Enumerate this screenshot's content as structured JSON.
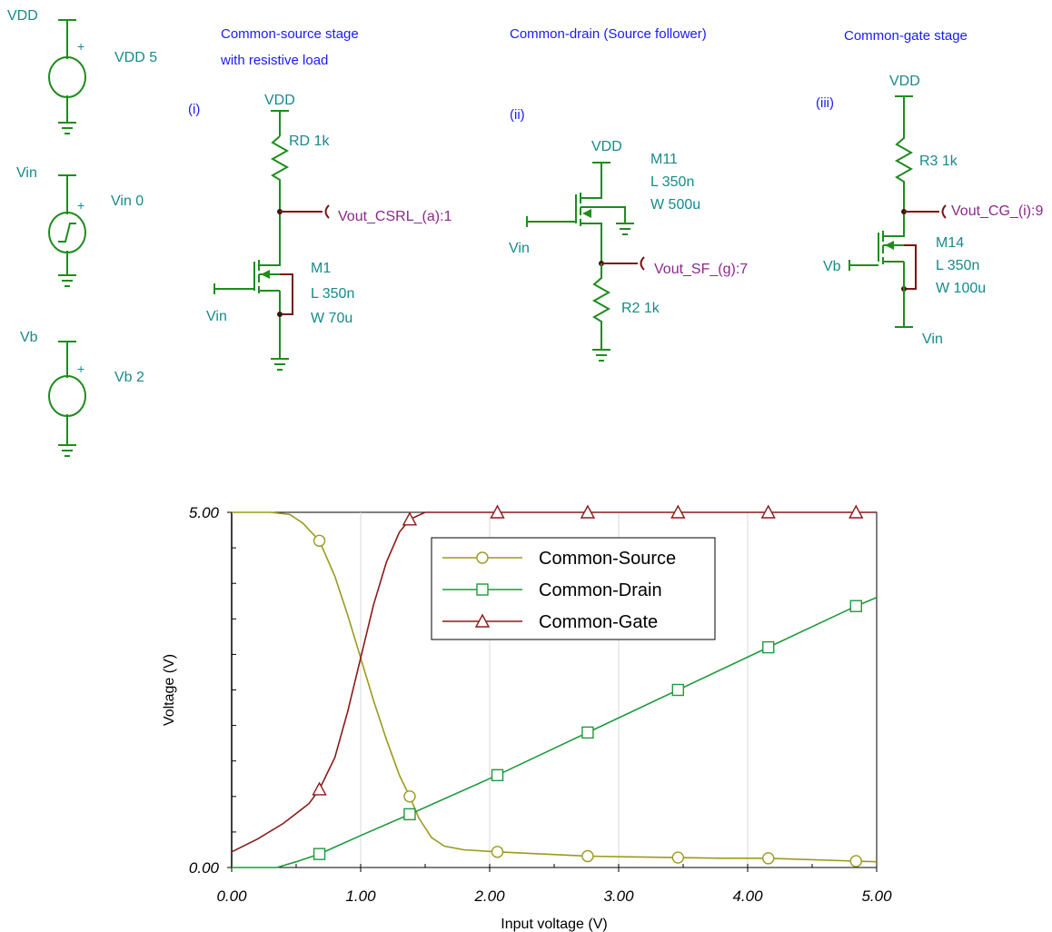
{
  "colors": {
    "heading_text": "#1a1aff",
    "component_text": "#168a8a",
    "node_text": "#8a2a8a",
    "wire": "#1e8c1e",
    "output_wire": "#7a1414",
    "common_source": "#9a9a1e",
    "common_drain": "#1e9a3c",
    "common_gate": "#8a1a1a"
  },
  "sources": {
    "vdd": {
      "node": "VDD",
      "label": "VDD 5",
      "polarity": "+"
    },
    "vin": {
      "node": "Vin",
      "label": "Vin 0",
      "polarity": "+"
    },
    "vb": {
      "node": "Vb",
      "label": "Vb 2",
      "polarity": "+"
    }
  },
  "circuit_cs": {
    "heading_line1": "Common-source stage",
    "heading_line2": "with resistive load",
    "tag": "(i)",
    "supply": "VDD",
    "resistor": "RD 1k",
    "output": "Vout_CSRL_(a):1",
    "input": "Vin",
    "mosfet_name": "M1",
    "mosfet_l": "L 350n",
    "mosfet_w": "W 70u"
  },
  "circuit_cd": {
    "heading": "Common-drain (Source follower)",
    "tag": "(ii)",
    "supply": "VDD",
    "input": "Vin",
    "mosfet_name": "M11",
    "mosfet_l": "L 350n",
    "mosfet_w": "W 500u",
    "output": "Vout_SF_(g):7",
    "resistor": "R2 1k"
  },
  "circuit_cg": {
    "heading": "Common-gate stage",
    "tag": "(iii)",
    "supply": "VDD",
    "resistor": "R3 1k",
    "output": "Vout_CG_(i):9",
    "bias": "Vb",
    "mosfet_name": "M14",
    "mosfet_l": "L 350n",
    "mosfet_w": "W 100u",
    "input": "Vin"
  },
  "chart_data": {
    "type": "line",
    "xlabel": "Input voltage (V)",
    "ylabel": "Voltage (V)",
    "xlim": [
      0,
      5
    ],
    "ylim": [
      0,
      5
    ],
    "x_ticks": [
      "0.00",
      "1.00",
      "2.00",
      "3.00",
      "4.00",
      "5.00"
    ],
    "y_ticks": [
      "0.00",
      "5.00"
    ],
    "grid": "vertical",
    "legend_position": "top-center",
    "series": [
      {
        "name": "Common-Source",
        "marker": "circle",
        "color": "#9a9a1e",
        "points": [
          [
            0,
            5
          ],
          [
            0.3,
            5
          ],
          [
            0.45,
            4.97
          ],
          [
            0.55,
            4.85
          ],
          [
            0.68,
            4.6
          ],
          [
            0.8,
            4.1
          ],
          [
            0.9,
            3.55
          ],
          [
            1.0,
            2.95
          ],
          [
            1.1,
            2.35
          ],
          [
            1.2,
            1.8
          ],
          [
            1.3,
            1.3
          ],
          [
            1.38,
            1.0
          ],
          [
            1.45,
            0.7
          ],
          [
            1.55,
            0.42
          ],
          [
            1.65,
            0.3
          ],
          [
            1.8,
            0.25
          ],
          [
            2.06,
            0.22
          ],
          [
            2.4,
            0.19
          ],
          [
            2.76,
            0.16
          ],
          [
            3.1,
            0.15
          ],
          [
            3.46,
            0.14
          ],
          [
            3.8,
            0.13
          ],
          [
            4.16,
            0.13
          ],
          [
            4.5,
            0.11
          ],
          [
            4.84,
            0.09
          ],
          [
            5,
            0.08
          ]
        ],
        "marker_x": [
          0.68,
          1.38,
          2.06,
          2.76,
          3.46,
          4.16,
          4.84
        ]
      },
      {
        "name": "Common-Drain",
        "marker": "square",
        "color": "#1e9a3c",
        "points": [
          [
            0,
            0
          ],
          [
            0.35,
            0
          ],
          [
            0.5,
            0.08
          ],
          [
            0.68,
            0.19
          ],
          [
            1.0,
            0.45
          ],
          [
            1.38,
            0.75
          ],
          [
            2.06,
            1.3
          ],
          [
            2.76,
            1.9
          ],
          [
            3.46,
            2.5
          ],
          [
            4.16,
            3.1
          ],
          [
            4.84,
            3.68
          ],
          [
            5,
            3.8
          ]
        ],
        "marker_x": [
          0.68,
          1.38,
          2.06,
          2.76,
          3.46,
          4.16,
          4.84
        ]
      },
      {
        "name": "Common-Gate",
        "marker": "triangle",
        "color": "#8a1a1a",
        "points": [
          [
            0,
            0.22
          ],
          [
            0.2,
            0.4
          ],
          [
            0.4,
            0.62
          ],
          [
            0.6,
            0.9
          ],
          [
            0.68,
            1.1
          ],
          [
            0.8,
            1.55
          ],
          [
            0.9,
            2.2
          ],
          [
            1.0,
            2.95
          ],
          [
            1.1,
            3.7
          ],
          [
            1.2,
            4.3
          ],
          [
            1.3,
            4.72
          ],
          [
            1.38,
            4.9
          ],
          [
            1.5,
            5.0
          ],
          [
            2.06,
            5
          ],
          [
            2.76,
            5
          ],
          [
            3.46,
            5
          ],
          [
            4.16,
            5
          ],
          [
            4.84,
            5
          ],
          [
            5,
            5
          ]
        ],
        "marker_x": [
          0.68,
          1.38,
          2.06,
          2.76,
          3.46,
          4.16,
          4.84
        ]
      }
    ]
  }
}
